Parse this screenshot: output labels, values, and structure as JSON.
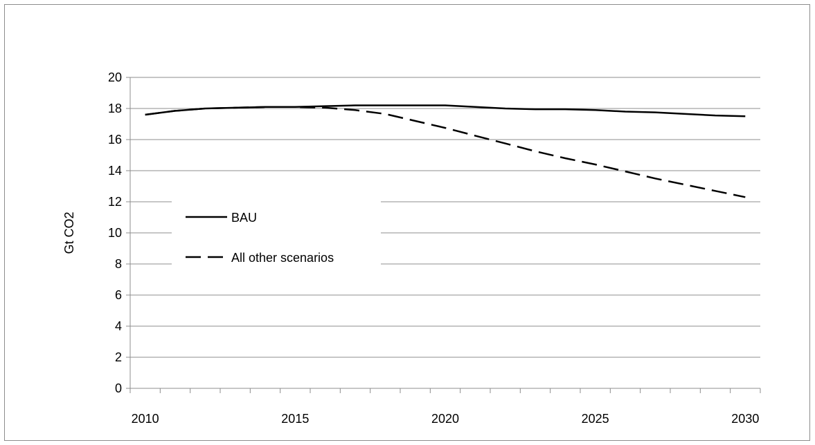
{
  "chart_data": {
    "type": "line",
    "title": "",
    "xlabel": "",
    "ylabel": "Gt CO2",
    "xlim": [
      2009.5,
      2030.5
    ],
    "ylim": [
      0,
      20
    ],
    "y_ticks": [
      0,
      2,
      4,
      6,
      8,
      10,
      12,
      14,
      16,
      18,
      20
    ],
    "x_tick_labels": [
      "2010",
      "2015",
      "2020",
      "2025",
      "2030"
    ],
    "x_tick_values": [
      2010,
      2015,
      2020,
      2025,
      2030
    ],
    "grid": "horizontal",
    "legend_position": "left-center",
    "x": [
      2010,
      2011,
      2012,
      2013,
      2014,
      2015,
      2016,
      2017,
      2018,
      2019,
      2020,
      2021,
      2022,
      2023,
      2024,
      2025,
      2026,
      2027,
      2028,
      2029,
      2030
    ],
    "series": [
      {
        "name": "BAU",
        "style": "solid",
        "color": "#000000",
        "values": [
          17.6,
          17.85,
          18.0,
          18.05,
          18.1,
          18.1,
          18.15,
          18.2,
          18.2,
          18.2,
          18.2,
          18.1,
          18.0,
          17.95,
          17.95,
          17.9,
          17.8,
          17.75,
          17.65,
          17.55,
          17.5
        ]
      },
      {
        "name": "All other scenarios",
        "style": "dashed",
        "color": "#000000",
        "values": [
          17.6,
          17.85,
          18.0,
          18.05,
          18.1,
          18.1,
          18.05,
          17.9,
          17.65,
          17.2,
          16.75,
          16.25,
          15.75,
          15.25,
          14.8,
          14.4,
          13.95,
          13.5,
          13.1,
          12.7,
          12.3
        ]
      }
    ]
  }
}
